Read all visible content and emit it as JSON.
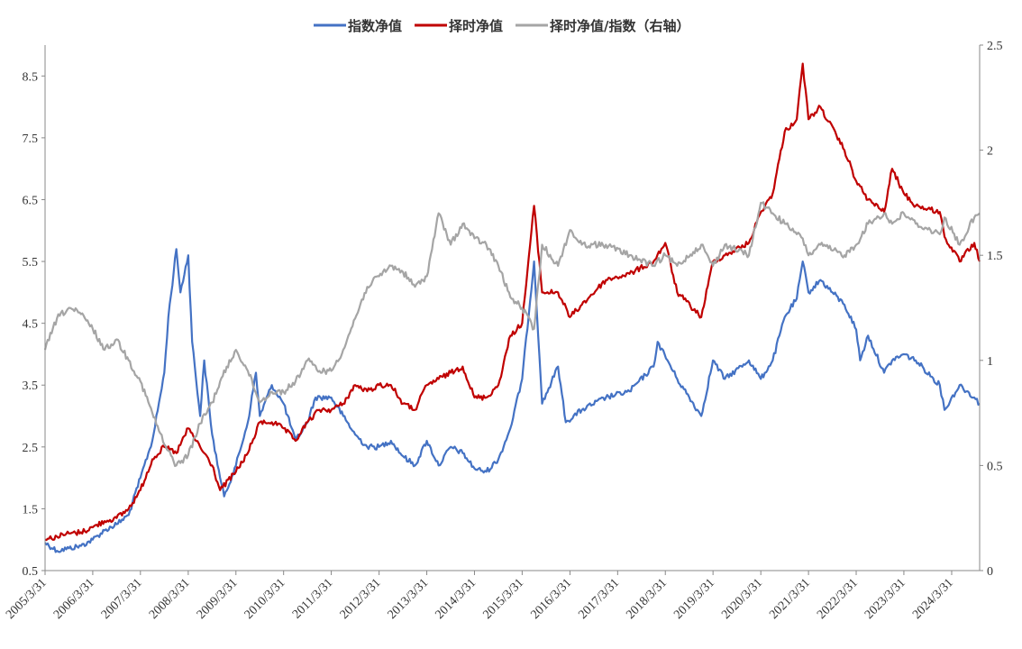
{
  "chart_data": {
    "type": "line",
    "legend_position": "top-center",
    "grid": false,
    "x_ticks": [
      "2005/3/31",
      "2006/3/31",
      "2007/3/31",
      "2008/3/31",
      "2009/3/31",
      "2010/3/31",
      "2011/3/31",
      "2012/3/31",
      "2013/3/31",
      "2014/3/31",
      "2015/3/31",
      "2016/3/31",
      "2017/3/31",
      "2018/3/31",
      "2019/3/31",
      "2020/3/31",
      "2021/3/31",
      "2022/3/31",
      "2023/3/31",
      "2024/3/31"
    ],
    "x_range": [
      "2005/3/31",
      "2024/10/31"
    ],
    "y_left": {
      "min": 0.5,
      "max": 9.0,
      "ticks": [
        "0.5",
        "1.5",
        "2.5",
        "3.5",
        "4.5",
        "5.5",
        "6.5",
        "7.5",
        "8.5"
      ]
    },
    "y_right": {
      "min": 0,
      "max": 2.5,
      "ticks": [
        "0",
        "0.5",
        "1",
        "1.5",
        "2",
        "2.5"
      ]
    },
    "series": [
      {
        "name": "指数净值",
        "axis": "left",
        "color": "#4472C4",
        "points": [
          [
            "2005/3/31",
            0.95
          ],
          [
            "2005/6/30",
            0.82
          ],
          [
            "2005/9/30",
            0.86
          ],
          [
            "2005/12/31",
            0.9
          ],
          [
            "2006/3/31",
            1.0
          ],
          [
            "2006/6/30",
            1.15
          ],
          [
            "2006/9/30",
            1.25
          ],
          [
            "2006/12/31",
            1.4
          ],
          [
            "2007/3/31",
            2.0
          ],
          [
            "2007/6/30",
            2.6
          ],
          [
            "2007/9/30",
            3.7
          ],
          [
            "2007/10/31",
            4.6
          ],
          [
            "2007/12/31",
            5.7
          ],
          [
            "2008/1/31",
            5.0
          ],
          [
            "2008/3/31",
            5.6
          ],
          [
            "2008/4/30",
            4.2
          ],
          [
            "2008/6/30",
            3.0
          ],
          [
            "2008/7/31",
            3.9
          ],
          [
            "2008/9/30",
            2.7
          ],
          [
            "2008/11/30",
            2.0
          ],
          [
            "2008/12/31",
            1.7
          ],
          [
            "2009/3/31",
            2.2
          ],
          [
            "2009/6/30",
            2.9
          ],
          [
            "2009/8/31",
            3.7
          ],
          [
            "2009/9/30",
            3.0
          ],
          [
            "2009/12/31",
            3.5
          ],
          [
            "2010/3/31",
            3.2
          ],
          [
            "2010/6/30",
            2.6
          ],
          [
            "2010/9/30",
            2.9
          ],
          [
            "2010/11/30",
            3.3
          ],
          [
            "2011/3/31",
            3.3
          ],
          [
            "2011/6/30",
            3.0
          ],
          [
            "2011/9/30",
            2.7
          ],
          [
            "2011/12/31",
            2.5
          ],
          [
            "2012/3/31",
            2.5
          ],
          [
            "2012/6/30",
            2.6
          ],
          [
            "2012/9/30",
            2.35
          ],
          [
            "2012/12/31",
            2.2
          ],
          [
            "2013/3/31",
            2.6
          ],
          [
            "2013/6/30",
            2.2
          ],
          [
            "2013/9/30",
            2.5
          ],
          [
            "2013/12/31",
            2.4
          ],
          [
            "2014/3/31",
            2.15
          ],
          [
            "2014/6/30",
            2.1
          ],
          [
            "2014/9/30",
            2.3
          ],
          [
            "2014/12/31",
            2.8
          ],
          [
            "2015/3/31",
            3.6
          ],
          [
            "2015/6/30",
            5.5
          ],
          [
            "2015/8/31",
            3.2
          ],
          [
            "2015/12/31",
            3.8
          ],
          [
            "2016/2/28",
            2.9
          ],
          [
            "2016/6/30",
            3.1
          ],
          [
            "2016/12/31",
            3.3
          ],
          [
            "2017/6/30",
            3.4
          ],
          [
            "2017/12/31",
            3.8
          ],
          [
            "2018/1/31",
            4.2
          ],
          [
            "2018/6/30",
            3.6
          ],
          [
            "2018/12/31",
            3.0
          ],
          [
            "2019/3/31",
            3.9
          ],
          [
            "2019/6/30",
            3.6
          ],
          [
            "2019/12/31",
            3.9
          ],
          [
            "2020/3/31",
            3.6
          ],
          [
            "2020/6/30",
            3.9
          ],
          [
            "2020/9/30",
            4.6
          ],
          [
            "2020/12/31",
            4.9
          ],
          [
            "2021/2/15",
            5.5
          ],
          [
            "2021/3/31",
            5.0
          ],
          [
            "2021/6/30",
            5.2
          ],
          [
            "2021/12/31",
            4.8
          ],
          [
            "2022/3/31",
            4.4
          ],
          [
            "2022/4/30",
            3.9
          ],
          [
            "2022/6/30",
            4.3
          ],
          [
            "2022/10/31",
            3.7
          ],
          [
            "2022/12/31",
            3.9
          ],
          [
            "2023/3/31",
            4.0
          ],
          [
            "2023/6/30",
            3.9
          ],
          [
            "2023/12/31",
            3.5
          ],
          [
            "2024/2/5",
            3.1
          ],
          [
            "2024/5/31",
            3.5
          ],
          [
            "2024/9/20",
            3.3
          ],
          [
            "2024/10/31",
            3.2
          ]
        ]
      },
      {
        "name": "择时净值",
        "axis": "left",
        "color": "#C00000",
        "points": [
          [
            "2005/3/31",
            1.0
          ],
          [
            "2005/6/30",
            1.05
          ],
          [
            "2005/9/30",
            1.1
          ],
          [
            "2005/12/31",
            1.12
          ],
          [
            "2006/3/31",
            1.2
          ],
          [
            "2006/6/30",
            1.3
          ],
          [
            "2006/9/30",
            1.35
          ],
          [
            "2006/12/31",
            1.5
          ],
          [
            "2007/3/31",
            1.8
          ],
          [
            "2007/6/30",
            2.3
          ],
          [
            "2007/9/30",
            2.5
          ],
          [
            "2007/12/31",
            2.4
          ],
          [
            "2008/3/31",
            2.8
          ],
          [
            "2008/6/30",
            2.5
          ],
          [
            "2008/9/30",
            2.2
          ],
          [
            "2008/11/30",
            1.8
          ],
          [
            "2009/3/31",
            2.1
          ],
          [
            "2009/6/30",
            2.4
          ],
          [
            "2009/9/30",
            2.9
          ],
          [
            "2009/12/31",
            2.9
          ],
          [
            "2010/3/31",
            2.8
          ],
          [
            "2010/6/30",
            2.6
          ],
          [
            "2010/9/30",
            2.9
          ],
          [
            "2010/12/31",
            3.1
          ],
          [
            "2011/3/31",
            3.1
          ],
          [
            "2011/6/30",
            3.2
          ],
          [
            "2011/9/30",
            3.5
          ],
          [
            "2011/12/31",
            3.4
          ],
          [
            "2012/3/31",
            3.5
          ],
          [
            "2012/6/30",
            3.5
          ],
          [
            "2012/9/30",
            3.2
          ],
          [
            "2012/12/31",
            3.1
          ],
          [
            "2013/3/31",
            3.5
          ],
          [
            "2013/6/30",
            3.6
          ],
          [
            "2013/9/30",
            3.7
          ],
          [
            "2013/12/31",
            3.8
          ],
          [
            "2014/3/31",
            3.3
          ],
          [
            "2014/6/30",
            3.3
          ],
          [
            "2014/9/30",
            3.5
          ],
          [
            "2014/12/31",
            4.3
          ],
          [
            "2015/3/31",
            4.5
          ],
          [
            "2015/6/30",
            6.4
          ],
          [
            "2015/8/31",
            5.0
          ],
          [
            "2015/12/31",
            5.0
          ],
          [
            "2016/3/31",
            4.6
          ],
          [
            "2016/6/30",
            4.8
          ],
          [
            "2016/12/31",
            5.2
          ],
          [
            "2017/6/30",
            5.3
          ],
          [
            "2017/12/31",
            5.5
          ],
          [
            "2018/3/31",
            5.8
          ],
          [
            "2018/6/30",
            5.0
          ],
          [
            "2018/12/31",
            4.6
          ],
          [
            "2019/3/31",
            5.5
          ],
          [
            "2019/6/30",
            5.6
          ],
          [
            "2019/12/31",
            5.8
          ],
          [
            "2020/3/31",
            6.3
          ],
          [
            "2020/6/30",
            6.6
          ],
          [
            "2020/9/30",
            7.6
          ],
          [
            "2020/12/31",
            7.8
          ],
          [
            "2021/2/15",
            8.7
          ],
          [
            "2021/3/31",
            7.8
          ],
          [
            "2021/6/30",
            8.0
          ],
          [
            "2021/12/31",
            7.3
          ],
          [
            "2022/3/31",
            6.8
          ],
          [
            "2022/6/30",
            6.5
          ],
          [
            "2022/10/31",
            6.3
          ],
          [
            "2022/12/31",
            7.0
          ],
          [
            "2023/3/31",
            6.6
          ],
          [
            "2023/6/30",
            6.4
          ],
          [
            "2023/12/31",
            6.3
          ],
          [
            "2024/2/5",
            5.9
          ],
          [
            "2024/5/31",
            5.5
          ],
          [
            "2024/9/20",
            5.8
          ],
          [
            "2024/10/31",
            5.5
          ]
        ]
      },
      {
        "name": "择时净值/指数（右轴）",
        "axis": "right",
        "color": "#A5A5A5",
        "points": [
          [
            "2005/3/31",
            1.05
          ],
          [
            "2005/6/30",
            1.2
          ],
          [
            "2005/9/30",
            1.25
          ],
          [
            "2005/12/31",
            1.22
          ],
          [
            "2006/3/31",
            1.15
          ],
          [
            "2006/6/30",
            1.05
          ],
          [
            "2006/9/30",
            1.1
          ],
          [
            "2006/12/31",
            1.0
          ],
          [
            "2007/3/31",
            0.9
          ],
          [
            "2007/6/30",
            0.75
          ],
          [
            "2007/9/30",
            0.6
          ],
          [
            "2007/12/31",
            0.5
          ],
          [
            "2008/3/31",
            0.55
          ],
          [
            "2008/6/30",
            0.7
          ],
          [
            "2008/9/30",
            0.8
          ],
          [
            "2008/11/30",
            0.9
          ],
          [
            "2009/3/31",
            1.05
          ],
          [
            "2009/6/30",
            0.95
          ],
          [
            "2009/9/30",
            0.8
          ],
          [
            "2009/12/31",
            0.85
          ],
          [
            "2010/3/31",
            0.85
          ],
          [
            "2010/6/30",
            0.9
          ],
          [
            "2010/9/30",
            1.0
          ],
          [
            "2010/12/31",
            0.95
          ],
          [
            "2011/3/31",
            0.95
          ],
          [
            "2011/6/30",
            1.05
          ],
          [
            "2011/9/30",
            1.2
          ],
          [
            "2011/12/31",
            1.35
          ],
          [
            "2012/3/31",
            1.4
          ],
          [
            "2012/6/30",
            1.45
          ],
          [
            "2012/9/30",
            1.42
          ],
          [
            "2012/12/31",
            1.35
          ],
          [
            "2013/3/31",
            1.4
          ],
          [
            "2013/6/30",
            1.7
          ],
          [
            "2013/9/30",
            1.55
          ],
          [
            "2013/12/31",
            1.65
          ],
          [
            "2014/3/31",
            1.58
          ],
          [
            "2014/6/30",
            1.55
          ],
          [
            "2014/9/30",
            1.45
          ],
          [
            "2014/12/31",
            1.3
          ],
          [
            "2015/3/31",
            1.25
          ],
          [
            "2015/6/30",
            1.15
          ],
          [
            "2015/8/31",
            1.55
          ],
          [
            "2015/12/31",
            1.45
          ],
          [
            "2016/3/31",
            1.62
          ],
          [
            "2016/6/30",
            1.55
          ],
          [
            "2016/12/31",
            1.55
          ],
          [
            "2017/6/30",
            1.5
          ],
          [
            "2017/12/31",
            1.45
          ],
          [
            "2018/3/31",
            1.5
          ],
          [
            "2018/6/30",
            1.45
          ],
          [
            "2018/12/31",
            1.55
          ],
          [
            "2019/3/31",
            1.45
          ],
          [
            "2019/6/30",
            1.55
          ],
          [
            "2019/12/31",
            1.5
          ],
          [
            "2020/3/31",
            1.75
          ],
          [
            "2020/6/30",
            1.7
          ],
          [
            "2020/9/30",
            1.65
          ],
          [
            "2020/12/31",
            1.6
          ],
          [
            "2021/2/15",
            1.58
          ],
          [
            "2021/3/31",
            1.5
          ],
          [
            "2021/6/30",
            1.55
          ],
          [
            "2021/12/31",
            1.5
          ],
          [
            "2022/3/31",
            1.55
          ],
          [
            "2022/6/30",
            1.65
          ],
          [
            "2022/10/31",
            1.7
          ],
          [
            "2022/12/31",
            1.65
          ],
          [
            "2023/3/31",
            1.7
          ],
          [
            "2023/6/30",
            1.65
          ],
          [
            "2023/12/31",
            1.6
          ],
          [
            "2024/2/5",
            1.68
          ],
          [
            "2024/5/31",
            1.55
          ],
          [
            "2024/9/20",
            1.68
          ],
          [
            "2024/10/31",
            1.7
          ]
        ]
      }
    ]
  }
}
